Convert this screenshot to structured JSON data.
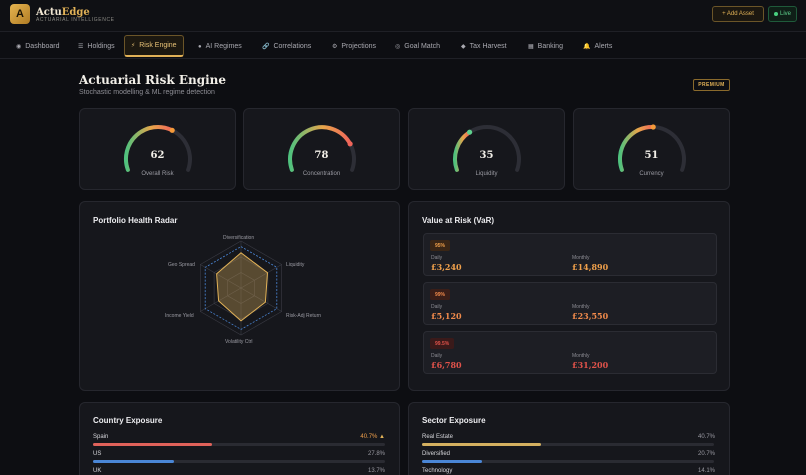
{
  "header": {
    "brand_main": "Actu",
    "brand_accent": "Edge",
    "brand_sub": "ACTUARIAL INTELLIGENCE",
    "logo_letter": "A",
    "add_asset": "+ Add Asset",
    "live": "Live"
  },
  "nav": [
    {
      "label": "Dashboard",
      "icon": "grid-icon",
      "glyph": "◉"
    },
    {
      "label": "Holdings",
      "icon": "list-icon",
      "glyph": "☰"
    },
    {
      "label": "Risk Engine",
      "icon": "bolt-icon",
      "glyph": "⚡"
    },
    {
      "label": "AI Regimes",
      "icon": "brain-icon",
      "glyph": "●"
    },
    {
      "label": "Correlations",
      "icon": "link-icon",
      "glyph": "🔗"
    },
    {
      "label": "Projections",
      "icon": "gear-icon",
      "glyph": "⚙"
    },
    {
      "label": "Goal Match",
      "icon": "target-icon",
      "glyph": "◎"
    },
    {
      "label": "Tax Harvest",
      "icon": "gem-icon",
      "glyph": "◆"
    },
    {
      "label": "Banking",
      "icon": "bank-icon",
      "glyph": "▦"
    },
    {
      "label": "Alerts",
      "icon": "bell-icon",
      "glyph": "🔔"
    }
  ],
  "page": {
    "title": "Actuarial Risk Engine",
    "subtitle": "Stochastic modelling & ML regime detection",
    "badge": "PREMIUM"
  },
  "gauges": [
    {
      "value": 62,
      "label": "Overall Risk",
      "fraction": 0.62
    },
    {
      "value": 78,
      "label": "Concentration",
      "fraction": 0.78
    },
    {
      "value": 35,
      "label": "Liquidity",
      "fraction": 0.35
    },
    {
      "value": 51,
      "label": "Currency",
      "fraction": 0.51
    }
  ],
  "radar": {
    "title": "Portfolio Health Radar",
    "axes": [
      "Diversification",
      "Liquidity",
      "Risk-Adj Return",
      "Volatility Ctrl",
      "Income Yield",
      "Geo Spread"
    ],
    "values": [
      0.75,
      0.65,
      0.6,
      0.7,
      0.55,
      0.6
    ]
  },
  "var": {
    "title": "Value at Risk (VaR)",
    "daily_label": "Daily",
    "monthly_label": "Monthly",
    "rows": [
      {
        "level": "95%",
        "daily": "£3,240",
        "monthly": "£14,890",
        "color": "#f0a04b"
      },
      {
        "level": "99%",
        "daily": "£5,120",
        "monthly": "£23,550",
        "color": "#f08a4b"
      },
      {
        "level": "99.5%",
        "daily": "£6,780",
        "monthly": "£31,200",
        "color": "#e0524a"
      }
    ]
  },
  "country": {
    "title": "Country Exposure",
    "items": [
      {
        "name": "Spain",
        "value": "40.7%",
        "fraction": 0.407,
        "color": "#e0625a",
        "warn": "▲"
      },
      {
        "name": "US",
        "value": "27.8%",
        "fraction": 0.278,
        "color": "#4a86d6"
      },
      {
        "name": "UK",
        "value": "13.7%",
        "fraction": 0.137,
        "color": "#9a9aa2"
      }
    ]
  },
  "sector": {
    "title": "Sector Exposure",
    "items": [
      {
        "name": "Real Estate",
        "value": "40.7%",
        "fraction": 0.407,
        "color": "#d4b060"
      },
      {
        "name": "Diversified",
        "value": "20.7%",
        "fraction": 0.207,
        "color": "#4a86d6"
      },
      {
        "name": "Technology",
        "value": "14.1%",
        "fraction": 0.141,
        "color": "#9a9aa2"
      }
    ]
  }
}
